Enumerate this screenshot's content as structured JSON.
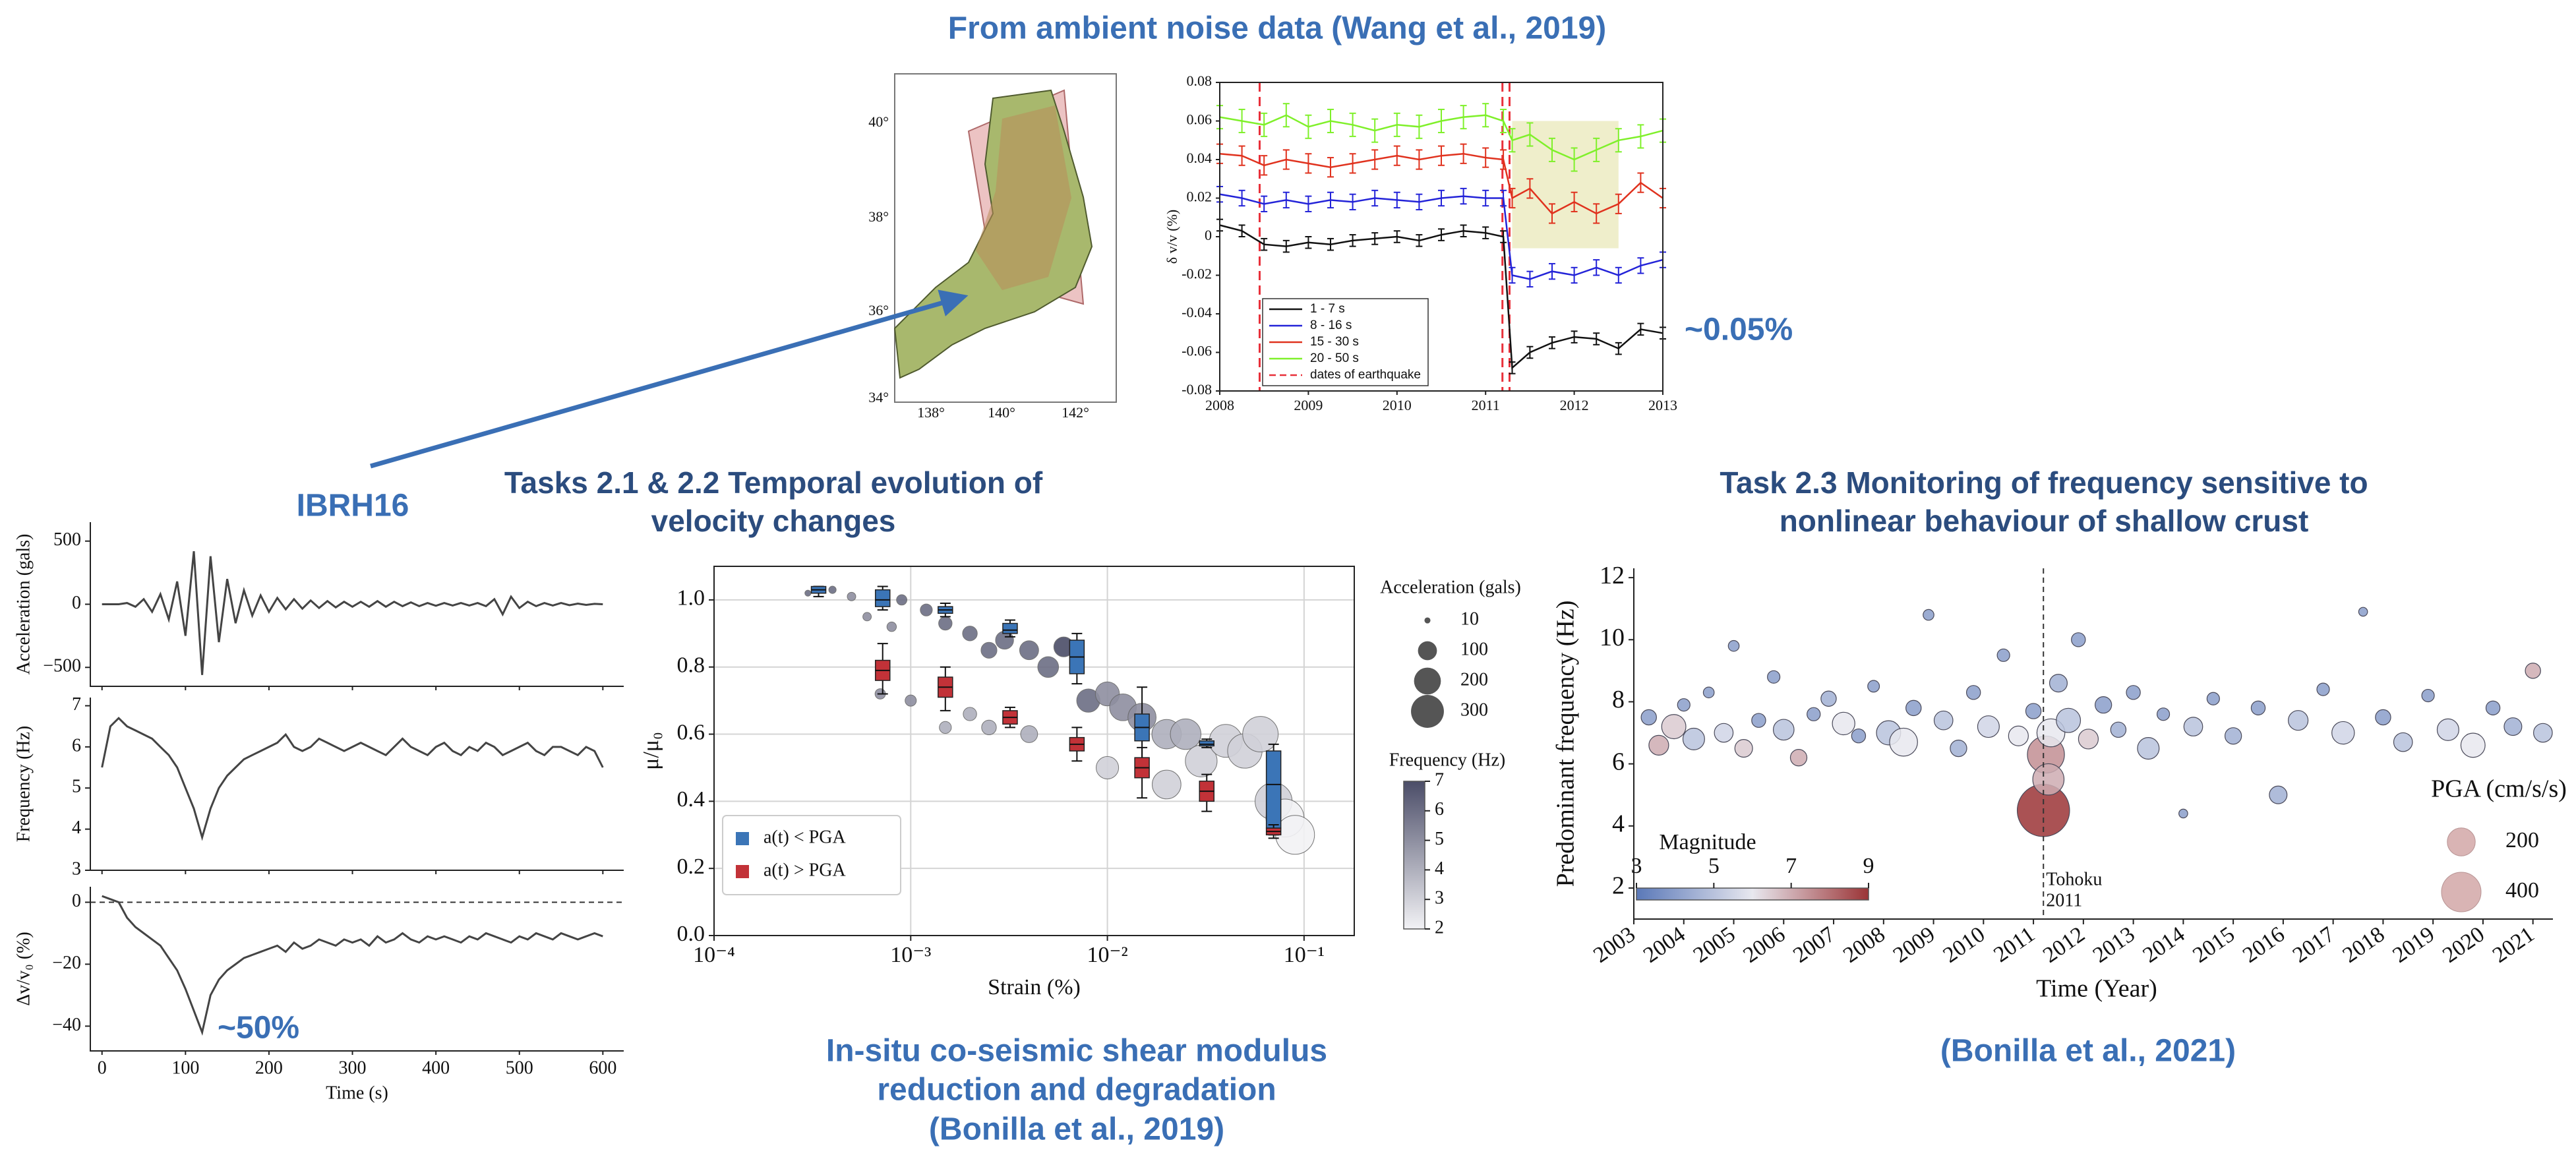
{
  "header": {
    "title": "From ambient noise data (Wang et al., 2019)"
  },
  "map": {
    "lat_labels": [
      "40°",
      "38°",
      "36°",
      "34°"
    ],
    "lon_labels": [
      "138°",
      "140°",
      "142°"
    ]
  },
  "annotations": {
    "station": "IBRH16",
    "dvv_change": "~0.05%",
    "strain_drop": "~50%"
  },
  "sections": {
    "tasks_2_1": [
      "Tasks 2.1 & 2.2 Temporal evolution of",
      "velocity changes"
    ],
    "task_2_3": [
      "Task 2.3 Monitoring of frequency sensitive to",
      "nonlinear behaviour of shallow crust"
    ],
    "caption_2019": [
      "In-situ co-seismic shear modulus",
      "reduction and degradation",
      "(Bonilla et al., 2019)"
    ],
    "caption_2021": "(Bonilla et al., 2021)"
  },
  "chart_data": [
    {
      "type": "errorline",
      "ylabel": "δ v/v (%)",
      "x": [
        2008.0,
        2008.25,
        2008.5,
        2008.75,
        2009.0,
        2009.25,
        2009.5,
        2009.75,
        2010.0,
        2010.25,
        2010.5,
        2010.75,
        2011.0,
        2011.2,
        2011.3,
        2011.5,
        2011.75,
        2012.0,
        2012.25,
        2012.5,
        2012.75,
        2013.0
      ],
      "series": [
        {
          "name": "1 - 7 s",
          "color": "#111111",
          "error": 0.003,
          "values": [
            0.006,
            0.003,
            -0.004,
            -0.005,
            -0.003,
            -0.004,
            -0.002,
            -0.001,
            0.0,
            -0.002,
            0.001,
            0.003,
            0.002,
            0.0,
            -0.068,
            -0.06,
            -0.055,
            -0.052,
            -0.053,
            -0.058,
            -0.048,
            -0.05
          ]
        },
        {
          "name": "8 - 16 s",
          "color": "#2323d8",
          "error": 0.004,
          "values": [
            0.022,
            0.02,
            0.017,
            0.019,
            0.017,
            0.019,
            0.018,
            0.02,
            0.019,
            0.018,
            0.02,
            0.021,
            0.02,
            0.02,
            -0.02,
            -0.022,
            -0.018,
            -0.02,
            -0.016,
            -0.02,
            -0.015,
            -0.012
          ]
        },
        {
          "name": "15 - 30 s",
          "color": "#e0321e",
          "error": 0.005,
          "values": [
            0.043,
            0.042,
            0.037,
            0.04,
            0.038,
            0.036,
            0.038,
            0.04,
            0.042,
            0.04,
            0.042,
            0.043,
            0.041,
            0.04,
            0.02,
            0.025,
            0.012,
            0.018,
            0.012,
            0.017,
            0.028,
            0.02
          ]
        },
        {
          "name": "20 - 50 s",
          "color": "#7ff02a",
          "error": 0.006,
          "values": [
            0.062,
            0.06,
            0.058,
            0.063,
            0.057,
            0.06,
            0.058,
            0.055,
            0.058,
            0.057,
            0.06,
            0.062,
            0.063,
            0.06,
            0.05,
            0.053,
            0.045,
            0.04,
            0.045,
            0.05,
            0.052,
            0.055
          ]
        }
      ],
      "event_label": "dates of earthquake",
      "event_color": "#e8303a",
      "event_dates": [
        2008.45,
        2011.19,
        2011.27
      ],
      "highlight": {
        "x": [
          2011.3,
          2012.5
        ],
        "y": [
          -0.006,
          0.06
        ],
        "color": "#efeecb"
      },
      "xlim": [
        2008,
        2013
      ],
      "xticks": [
        2008,
        2009,
        2010,
        2011,
        2012,
        2013
      ],
      "ylim": [
        -0.08,
        0.08
      ],
      "yticks": [
        -0.08,
        -0.06,
        -0.04,
        -0.02,
        0,
        0.02,
        0.04,
        0.06,
        0.08
      ],
      "legend": "lower left"
    },
    {
      "type": "panels",
      "xlabel": "Time (s)",
      "color": "#444444",
      "x": [
        0,
        10,
        20,
        30,
        40,
        50,
        60,
        70,
        80,
        90,
        100,
        110,
        120,
        130,
        140,
        150,
        160,
        170,
        180,
        190,
        200,
        210,
        220,
        230,
        240,
        250,
        260,
        270,
        280,
        290,
        300,
        310,
        320,
        330,
        340,
        350,
        360,
        370,
        380,
        390,
        400,
        410,
        420,
        430,
        440,
        450,
        460,
        470,
        480,
        490,
        500,
        510,
        520,
        530,
        540,
        550,
        560,
        570,
        580,
        590,
        600
      ],
      "xlim": [
        -14,
        625
      ],
      "xticks": [
        0,
        100,
        200,
        300,
        400,
        500,
        600
      ],
      "panels": [
        {
          "ylabel": "Acceleration (gals)",
          "ylim": [
            -650,
            650
          ],
          "yticks": [
            {
              "value": -500,
              "label": "−500"
            },
            0,
            500
          ],
          "values": [
            0,
            0,
            0,
            10,
            -20,
            40,
            -60,
            80,
            -120,
            180,
            -250,
            420,
            -560,
            380,
            -300,
            200,
            -150,
            110,
            -90,
            70,
            -60,
            50,
            -40,
            40,
            -35,
            30,
            -30,
            25,
            -25,
            20,
            -20,
            20,
            -20,
            25,
            -20,
            20,
            -15,
            15,
            -15,
            10,
            -12,
            10,
            -10,
            10,
            -10,
            10,
            -15,
            40,
            -80,
            60,
            -30,
            20,
            -15,
            10,
            -10,
            10,
            -8,
            5,
            -5,
            3,
            0
          ]
        },
        {
          "ylabel": "Frequency (Hz)",
          "ylim": [
            3,
            7.2
          ],
          "yticks": [
            3,
            4,
            5,
            6,
            7
          ],
          "values": [
            5.5,
            6.5,
            6.7,
            6.5,
            6.4,
            6.3,
            6.2,
            6.0,
            5.8,
            5.5,
            5.0,
            4.5,
            3.8,
            4.5,
            5.0,
            5.3,
            5.5,
            5.7,
            5.8,
            5.9,
            6.0,
            6.1,
            6.3,
            6.0,
            5.9,
            6.0,
            6.2,
            6.1,
            6.0,
            5.9,
            6.0,
            6.1,
            6.0,
            5.9,
            5.8,
            6.0,
            6.2,
            6.0,
            5.9,
            5.8,
            6.0,
            6.1,
            5.9,
            5.8,
            6.0,
            5.9,
            6.1,
            6.0,
            5.8,
            5.9,
            6.0,
            6.1,
            5.9,
            5.8,
            6.0,
            6.0,
            5.9,
            5.8,
            6.0,
            5.9,
            5.5
          ]
        },
        {
          "ylabel": "Δv/v₀ (%)",
          "ylim": [
            -48,
            5
          ],
          "yticks": [
            {
              "value": -40,
              "label": "−40"
            },
            {
              "value": -20,
              "label": "−20"
            },
            0
          ],
          "reference_line": 0,
          "values": [
            2,
            1,
            0,
            -5,
            -8,
            -10,
            -12,
            -14,
            -18,
            -22,
            -28,
            -35,
            -42,
            -30,
            -25,
            -22,
            -20,
            -18,
            -17,
            -16,
            -15,
            -14,
            -16,
            -13,
            -15,
            -14,
            -12,
            -13,
            -14,
            -12,
            -13,
            -12,
            -14,
            -11,
            -13,
            -12,
            -10,
            -12,
            -13,
            -11,
            -12,
            -11,
            -12,
            -13,
            -11,
            -12,
            -10,
            -11,
            -12,
            -13,
            -11,
            -12,
            -10,
            -11,
            -12,
            -10,
            -11,
            -12,
            -11,
            -10,
            -11
          ]
        }
      ]
    },
    {
      "type": "box",
      "xlabel": "Strain (%)",
      "ylabel": "μ/μ₀",
      "xlog": true,
      "grid": true,
      "legend": "lower left",
      "xlim": [
        0.0001,
        0.18
      ],
      "xticks": [
        {
          "value": 0.0001,
          "label": "10⁻⁴"
        },
        {
          "value": 0.001,
          "label": "10⁻³"
        },
        {
          "value": 0.01,
          "label": "10⁻²"
        },
        {
          "value": 0.1,
          "label": "10⁻¹"
        }
      ],
      "ylim": [
        0,
        1.1
      ],
      "yticks": [
        {
          "value": 0,
          "label": "0.0"
        },
        0.2,
        0.4,
        0.6,
        0.8,
        {
          "value": 1,
          "label": "1.0"
        }
      ],
      "series": [
        {
          "name": "a(t) < PGA",
          "color": "#3b75b7",
          "x": [
            0.00034,
            0.00072,
            0.0015,
            0.0032,
            0.007,
            0.015,
            0.032,
            0.07
          ],
          "low": [
            1.01,
            0.97,
            0.95,
            0.89,
            0.75,
            0.5,
            0.56,
            0.3
          ],
          "q1": [
            1.02,
            0.98,
            0.96,
            0.9,
            0.78,
            0.58,
            0.565,
            0.32
          ],
          "median": [
            1.03,
            1.0,
            0.97,
            0.91,
            0.83,
            0.62,
            0.57,
            0.45
          ],
          "q3": [
            1.04,
            1.03,
            0.98,
            0.93,
            0.88,
            0.66,
            0.58,
            0.55
          ],
          "high": [
            1.04,
            1.04,
            0.99,
            0.94,
            0.9,
            0.74,
            0.585,
            0.57
          ]
        },
        {
          "name": "a(t) > PGA",
          "color": "#c23238",
          "x": [
            0.00072,
            0.0015,
            0.0032,
            0.007,
            0.015,
            0.032,
            0.07
          ],
          "low": [
            0.72,
            0.67,
            0.62,
            0.52,
            0.41,
            0.37,
            0.29
          ],
          "q1": [
            0.76,
            0.71,
            0.63,
            0.55,
            0.47,
            0.4,
            0.3
          ],
          "median": [
            0.79,
            0.74,
            0.65,
            0.57,
            0.5,
            0.43,
            0.31
          ],
          "q3": [
            0.82,
            0.77,
            0.67,
            0.59,
            0.53,
            0.46,
            0.32
          ],
          "high": [
            0.87,
            0.8,
            0.68,
            0.62,
            0.56,
            0.48,
            0.33
          ]
        }
      ],
      "points": {
        "x": [
          0.0003,
          0.0004,
          0.0005,
          0.0006,
          0.0008,
          0.0009,
          0.0012,
          0.0015,
          0.002,
          0.0025,
          0.003,
          0.004,
          0.005,
          0.006,
          0.008,
          0.01,
          0.012,
          0.015,
          0.02,
          0.025,
          0.03,
          0.04,
          0.05,
          0.06,
          0.07,
          0.08,
          0.09,
          0.0015,
          0.002,
          0.0007,
          0.001,
          0.0025,
          0.004,
          0.01,
          0.02
        ],
        "y": [
          1.02,
          1.03,
          1.01,
          0.95,
          0.92,
          1.0,
          0.97,
          0.93,
          0.9,
          0.85,
          0.88,
          0.85,
          0.8,
          0.86,
          0.7,
          0.72,
          0.68,
          0.65,
          0.6,
          0.6,
          0.52,
          0.58,
          0.55,
          0.6,
          0.4,
          0.35,
          0.3,
          0.62,
          0.66,
          0.72,
          0.7,
          0.62,
          0.6,
          0.5,
          0.45
        ],
        "size": [
          10,
          15,
          20,
          20,
          25,
          30,
          40,
          50,
          60,
          70,
          90,
          100,
          120,
          110,
          150,
          160,
          200,
          220,
          240,
          260,
          280,
          300,
          330,
          350,
          380,
          400,
          420,
          40,
          50,
          30,
          35,
          60,
          80,
          140,
          230
        ],
        "freq": [
          6,
          6,
          5,
          5,
          5,
          6,
          6,
          6,
          6,
          6,
          6,
          6,
          6,
          7,
          6,
          5,
          5,
          5,
          4,
          4,
          3,
          3,
          3,
          3,
          3,
          2,
          2,
          4,
          4,
          5,
          5,
          4,
          4,
          3,
          3
        ]
      },
      "size_legend": {
        "title": "Acceleration (gals)",
        "values": [
          10,
          100,
          200,
          300
        ]
      },
      "colorbar": {
        "title": "Frequency (Hz)",
        "ticks": [
          2,
          3,
          4,
          5,
          6,
          7
        ],
        "colors": [
          "#f2f2f5",
          "#4b4d68"
        ]
      }
    },
    {
      "type": "scatter",
      "xlabel": "Time (Year)",
      "ylabel": "Predominant frequency (Hz)",
      "xlim": [
        2003,
        2021.4
      ],
      "xticks": [
        2003,
        2004,
        2005,
        2006,
        2007,
        2008,
        2009,
        2010,
        2011,
        2012,
        2013,
        2014,
        2015,
        2016,
        2017,
        2018,
        2019,
        2020,
        2021
      ],
      "ylim": [
        1,
        12.3
      ],
      "yticks": [
        2,
        4,
        6,
        8,
        10,
        12
      ],
      "event_x": 2011.2,
      "event_label": [
        "Tohoku",
        "2011"
      ],
      "x": [
        2003.3,
        2003.5,
        2003.8,
        2004.0,
        2004.2,
        2004.5,
        2004.8,
        2005.0,
        2005.2,
        2005.5,
        2005.8,
        2006.0,
        2006.3,
        2006.6,
        2006.9,
        2007.2,
        2007.5,
        2007.8,
        2008.1,
        2008.4,
        2008.6,
        2008.9,
        2009.2,
        2009.5,
        2009.8,
        2010.1,
        2010.4,
        2010.7,
        2011.0,
        2011.2,
        2011.25,
        2011.3,
        2011.35,
        2011.5,
        2011.7,
        2011.9,
        2012.1,
        2012.4,
        2012.7,
        2013.0,
        2013.3,
        2013.6,
        2014.0,
        2014.2,
        2014.6,
        2015.0,
        2015.5,
        2015.9,
        2016.3,
        2016.8,
        2017.2,
        2017.6,
        2018.0,
        2018.4,
        2018.9,
        2019.3,
        2019.8,
        2020.2,
        2020.6,
        2021.0,
        2021.2
      ],
      "y": [
        7.5,
        6.6,
        7.2,
        7.9,
        6.8,
        8.3,
        7.0,
        9.8,
        6.5,
        7.4,
        8.8,
        7.1,
        6.2,
        7.6,
        8.1,
        7.3,
        6.9,
        8.5,
        7.0,
        6.7,
        7.8,
        10.8,
        7.4,
        6.5,
        8.3,
        7.2,
        9.5,
        6.9,
        7.7,
        4.5,
        6.3,
        5.5,
        7.0,
        8.6,
        7.4,
        10.0,
        6.8,
        7.9,
        7.1,
        8.3,
        6.5,
        7.6,
        4.4,
        7.2,
        8.1,
        6.9,
        7.8,
        5.0,
        7.4,
        8.4,
        7.0,
        10.9,
        7.5,
        6.7,
        8.2,
        7.1,
        6.6,
        7.8,
        7.2,
        9.0,
        7.0
      ],
      "pga": [
        60,
        100,
        150,
        40,
        120,
        30,
        90,
        30,
        80,
        50,
        40,
        110,
        70,
        45,
        60,
        130,
        50,
        35,
        150,
        200,
        60,
        30,
        90,
        70,
        50,
        120,
        40,
        100,
        60,
        700,
        350,
        250,
        200,
        80,
        150,
        50,
        100,
        70,
        60,
        50,
        120,
        40,
        20,
        90,
        40,
        70,
        50,
        80,
        100,
        40,
        130,
        20,
        60,
        90,
        40,
        120,
        150,
        50,
        80,
        60,
        90
      ],
      "magnitude": [
        4,
        7,
        6.5,
        4,
        5,
        4,
        5.5,
        4,
        6.5,
        4,
        4,
        5,
        7,
        4,
        4.5,
        6,
        4,
        4,
        5,
        6,
        4,
        4,
        5,
        4.5,
        4,
        5.5,
        4,
        6,
        4,
        9,
        7.5,
        7,
        6,
        4.5,
        5,
        4,
        6.5,
        4,
        4.5,
        4,
        5,
        4,
        4,
        5,
        4,
        4.5,
        4,
        4.5,
        5,
        4,
        5.5,
        4,
        4,
        5,
        4,
        5.5,
        6,
        4,
        4.5,
        7,
        5
      ],
      "size_legend": {
        "title": "PGA (cm/s/s)",
        "values": [
          200,
          400
        ]
      },
      "colorbar": {
        "title": "Magnitude",
        "ticks": [
          3,
          5,
          7,
          9
        ],
        "colors": [
          "#5a78b8",
          "#e8e8ef",
          "#9b3436"
        ]
      }
    }
  ]
}
